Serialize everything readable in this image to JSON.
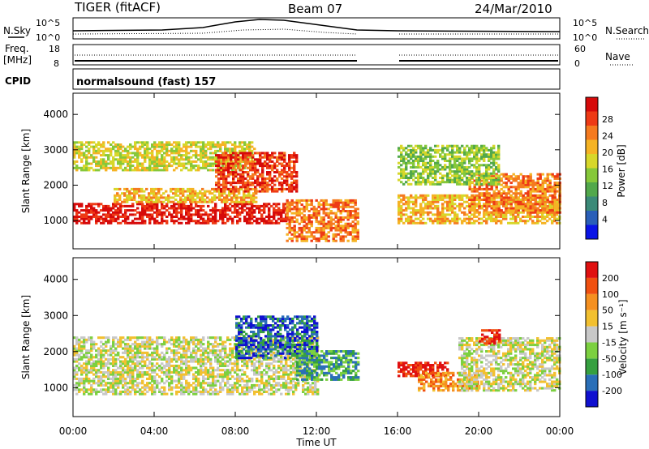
{
  "header": {
    "radar": "TIGER (fitACF)",
    "beam": "Beam 07",
    "date": "24/Mar/2010"
  },
  "noise_panel": {
    "left_label": "N.Sky",
    "right_label": "N.Search",
    "left_ticks": [
      "10^5",
      "10^0"
    ],
    "right_ticks": [
      "10^5",
      "10^0"
    ]
  },
  "freq_panel": {
    "left_label_line1": "Freq.",
    "left_label_line2": "[MHz]",
    "right_label": "Nave",
    "left_ticks": [
      "18",
      "8"
    ],
    "right_ticks": [
      "60",
      "0"
    ]
  },
  "cpid": {
    "label": "CPID",
    "value": "normalsound (fast) 157"
  },
  "x_axis": {
    "label": "Time UT",
    "ticks": [
      "00:00",
      "04:00",
      "08:00",
      "12:00",
      "16:00",
      "20:00",
      "00:00"
    ]
  },
  "chart_data": [
    {
      "type": "heatmap",
      "name": "power",
      "ylabel": "Slant Range [km]",
      "yticks": [
        "1000",
        "2000",
        "3000",
        "4000"
      ],
      "ylim": [
        200,
        4600
      ],
      "xlim_hours": [
        0,
        24
      ],
      "data_gap_hours": [
        14.1,
        15.9
      ],
      "colorbar_label": "Power [dB]",
      "colorbar_ticks": [
        "4",
        "8",
        "12",
        "16",
        "20",
        "24",
        "28"
      ],
      "colorbar_colors": [
        "#0a14e6",
        "#2a5fb8",
        "#3b8a78",
        "#52a84b",
        "#86c83a",
        "#d7d72a",
        "#f5b324",
        "#f57a1f",
        "#ee3a15",
        "#d60a0a"
      ],
      "bands": [
        {
          "t": [
            0,
            10.5
          ],
          "r": [
            900,
            1500
          ],
          "level": 9
        },
        {
          "t": [
            2,
            9
          ],
          "r": [
            1500,
            1900
          ],
          "level": 6
        },
        {
          "t": [
            0,
            9
          ],
          "r": [
            2400,
            3200
          ],
          "level": 5
        },
        {
          "t": [
            7,
            11
          ],
          "r": [
            1800,
            2900
          ],
          "level": 8
        },
        {
          "t": [
            10.5,
            14
          ],
          "r": [
            400,
            1600
          ],
          "level": 7
        },
        {
          "t": [
            16,
            24
          ],
          "r": [
            900,
            1700
          ],
          "level": 6
        },
        {
          "t": [
            19.5,
            24
          ],
          "r": [
            1200,
            2300
          ],
          "level": 7
        },
        {
          "t": [
            16,
            21
          ],
          "r": [
            2000,
            3100
          ],
          "level": 4
        }
      ]
    },
    {
      "type": "heatmap",
      "name": "velocity",
      "ylabel": "Slant Range [km]",
      "yticks": [
        "1000",
        "2000",
        "3000",
        "4000"
      ],
      "ylim": [
        200,
        4600
      ],
      "xlim_hours": [
        0,
        24
      ],
      "data_gap_hours": [
        14.1,
        15.9
      ],
      "colorbar_label": "Velocity [m s⁻¹]",
      "colorbar_ticks": [
        "200",
        "100",
        "50",
        "15",
        "-15",
        "-50",
        "-100",
        "-200"
      ],
      "colorbar_colors": [
        "#1010d0",
        "#2a6fb8",
        "#36a040",
        "#7cd040",
        "#c8c8c8",
        "#f2c030",
        "#f59020",
        "#f05010",
        "#e01010"
      ],
      "bands": [
        {
          "t": [
            0,
            12
          ],
          "r": [
            800,
            2400
          ],
          "level": 4
        },
        {
          "t": [
            8,
            12
          ],
          "r": [
            1800,
            3000
          ],
          "level": 1
        },
        {
          "t": [
            11,
            14
          ],
          "r": [
            1200,
            2000
          ],
          "level": 2
        },
        {
          "t": [
            16,
            18.5
          ],
          "r": [
            1300,
            1700
          ],
          "level": 8
        },
        {
          "t": [
            17,
            20
          ],
          "r": [
            900,
            1400
          ],
          "level": 6
        },
        {
          "t": [
            19,
            24
          ],
          "r": [
            900,
            2400
          ],
          "level": 4
        },
        {
          "t": [
            20,
            21
          ],
          "r": [
            2200,
            2600
          ],
          "level": 8
        }
      ]
    }
  ]
}
